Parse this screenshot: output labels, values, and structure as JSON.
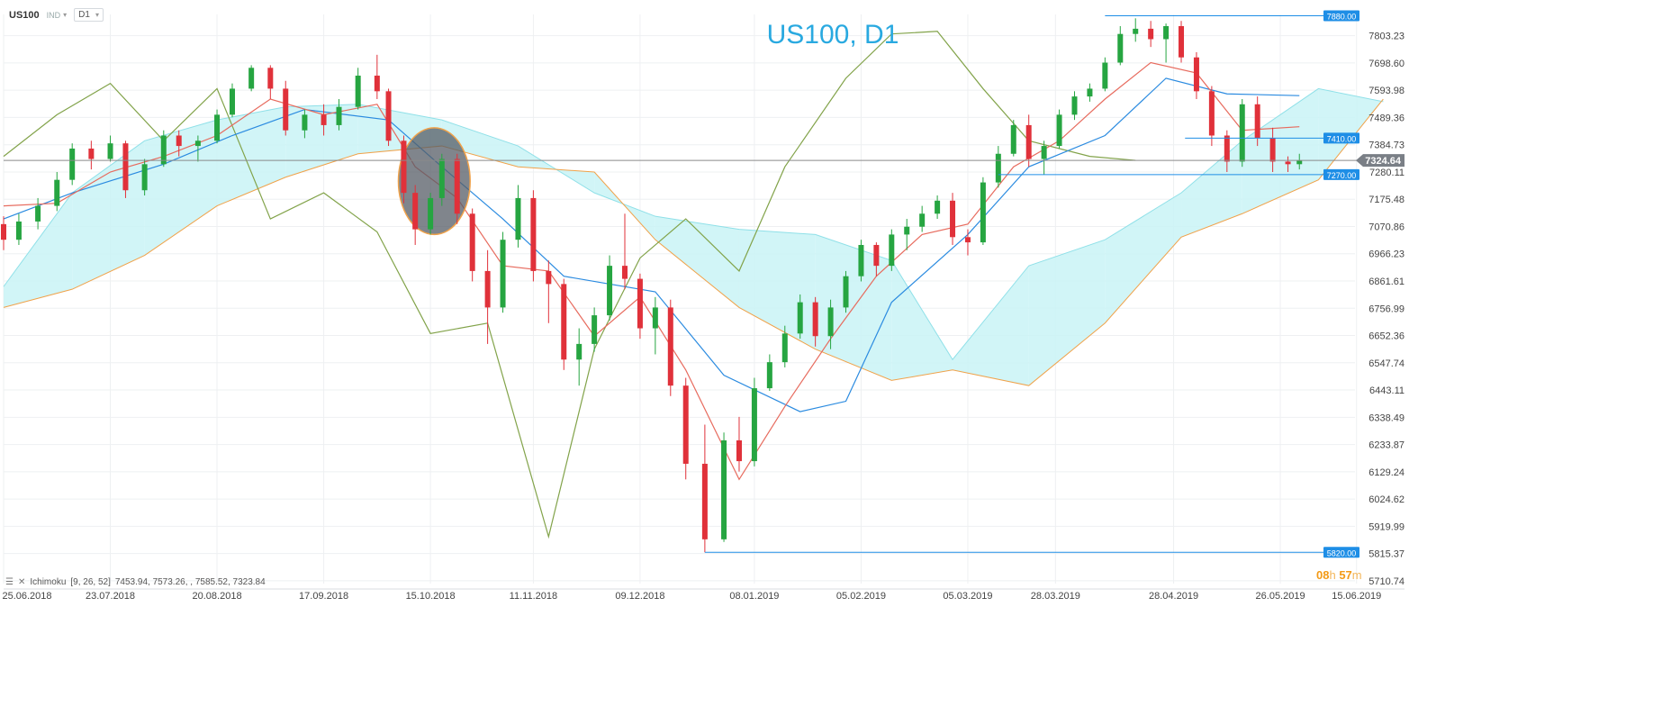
{
  "toolbar": {
    "symbol": "US100",
    "type_label": "IND",
    "timeframe": "D1"
  },
  "indicator_legend": {
    "name": "Ichimoku",
    "params": "[9, 26, 52]",
    "values": "7453.94,  7573.26,  , 7585.52,  7323.84"
  },
  "countdown": {
    "hours": "08",
    "h_unit": "h",
    "minutes": "57",
    "m_unit": "m"
  },
  "colors": {
    "title": "#29a9e0",
    "bull": "#26a541",
    "bear": "#e0313a",
    "tenkan": "#e76b5e",
    "kijun": "#2b8be0",
    "chikou": "#82a34a",
    "spanA": "#f0a24a",
    "kumo_bull": "#c9f3f6",
    "kumo_bear": "#fbd5b0",
    "hline": "#1e8ee6",
    "price_line": "#8a8a8a",
    "highlight_fill": "#555c66",
    "highlight_stroke": "#f0a24a"
  },
  "chart_data": {
    "type": "candlestick",
    "title": "US100, D1",
    "y_ticks": [
      7803.23,
      7698.6,
      7593.98,
      7489.36,
      7384.73,
      7280.11,
      7175.48,
      7070.86,
      6966.23,
      6861.61,
      6756.99,
      6652.36,
      6547.74,
      6443.11,
      6338.49,
      6233.87,
      6129.24,
      6024.62,
      5919.99,
      5815.37,
      5710.74
    ],
    "x_ticks": [
      "25.06.2018",
      "23.07.2018",
      "20.08.2018",
      "17.09.2018",
      "15.10.2018",
      "11.11.2018",
      "09.12.2018",
      "08.01.2019",
      "05.02.2019",
      "05.03.2019",
      "28.03.2019",
      "28.04.2019",
      "26.05.2019",
      "15.06.2019"
    ],
    "ylim": [
      5700,
      7885
    ],
    "current_price": 7324.64,
    "horizontal_levels": [
      {
        "value": 7880.0,
        "label": "7880.00",
        "from_date": "2019-04-10"
      },
      {
        "value": 7410.0,
        "label": "7410.00",
        "from_date": "2019-05-01"
      },
      {
        "value": 7270.0,
        "label": "7270.00",
        "from_date": "2019-03-13"
      },
      {
        "value": 5820.0,
        "label": "5820.00",
        "from_date": "2018-12-26"
      }
    ],
    "highlight": {
      "from_date": "2018-10-08",
      "to_date": "2018-10-24",
      "low": 7040,
      "high": 7450
    },
    "candles": [
      {
        "d": "2018-06-25",
        "o": 7080,
        "h": 7110,
        "l": 6980,
        "c": 7020
      },
      {
        "d": "2018-06-29",
        "o": 7020,
        "h": 7120,
        "l": 7000,
        "c": 7090
      },
      {
        "d": "2018-07-04",
        "o": 7090,
        "h": 7180,
        "l": 7060,
        "c": 7150
      },
      {
        "d": "2018-07-09",
        "o": 7150,
        "h": 7280,
        "l": 7130,
        "c": 7250
      },
      {
        "d": "2018-07-13",
        "o": 7250,
        "h": 7390,
        "l": 7230,
        "c": 7370
      },
      {
        "d": "2018-07-18",
        "o": 7370,
        "h": 7400,
        "l": 7290,
        "c": 7330
      },
      {
        "d": "2018-07-23",
        "o": 7330,
        "h": 7420,
        "l": 7320,
        "c": 7390
      },
      {
        "d": "2018-07-27",
        "o": 7390,
        "h": 7400,
        "l": 7180,
        "c": 7210
      },
      {
        "d": "2018-08-01",
        "o": 7210,
        "h": 7330,
        "l": 7190,
        "c": 7310
      },
      {
        "d": "2018-08-06",
        "o": 7310,
        "h": 7440,
        "l": 7300,
        "c": 7420
      },
      {
        "d": "2018-08-10",
        "o": 7420,
        "h": 7440,
        "l": 7340,
        "c": 7380
      },
      {
        "d": "2018-08-15",
        "o": 7380,
        "h": 7420,
        "l": 7320,
        "c": 7400
      },
      {
        "d": "2018-08-20",
        "o": 7400,
        "h": 7520,
        "l": 7390,
        "c": 7500
      },
      {
        "d": "2018-08-24",
        "o": 7500,
        "h": 7620,
        "l": 7490,
        "c": 7600
      },
      {
        "d": "2018-08-29",
        "o": 7600,
        "h": 7690,
        "l": 7590,
        "c": 7680
      },
      {
        "d": "2018-09-03",
        "o": 7680,
        "h": 7690,
        "l": 7560,
        "c": 7600
      },
      {
        "d": "2018-09-07",
        "o": 7600,
        "h": 7630,
        "l": 7420,
        "c": 7440
      },
      {
        "d": "2018-09-12",
        "o": 7440,
        "h": 7520,
        "l": 7410,
        "c": 7500
      },
      {
        "d": "2018-09-17",
        "o": 7500,
        "h": 7540,
        "l": 7420,
        "c": 7460
      },
      {
        "d": "2018-09-21",
        "o": 7460,
        "h": 7560,
        "l": 7440,
        "c": 7530
      },
      {
        "d": "2018-09-26",
        "o": 7530,
        "h": 7680,
        "l": 7520,
        "c": 7650
      },
      {
        "d": "2018-10-01",
        "o": 7650,
        "h": 7730,
        "l": 7560,
        "c": 7590
      },
      {
        "d": "2018-10-04",
        "o": 7590,
        "h": 7600,
        "l": 7380,
        "c": 7400
      },
      {
        "d": "2018-10-08",
        "o": 7400,
        "h": 7420,
        "l": 7160,
        "c": 7200
      },
      {
        "d": "2018-10-11",
        "o": 7200,
        "h": 7230,
        "l": 7000,
        "c": 7060
      },
      {
        "d": "2018-10-15",
        "o": 7060,
        "h": 7200,
        "l": 7040,
        "c": 7180
      },
      {
        "d": "2018-10-18",
        "o": 7180,
        "h": 7350,
        "l": 7150,
        "c": 7330
      },
      {
        "d": "2018-10-22",
        "o": 7330,
        "h": 7350,
        "l": 7080,
        "c": 7120
      },
      {
        "d": "2018-10-26",
        "o": 7120,
        "h": 7140,
        "l": 6860,
        "c": 6900
      },
      {
        "d": "2018-10-30",
        "o": 6900,
        "h": 6980,
        "l": 6620,
        "c": 6760
      },
      {
        "d": "2018-11-03",
        "o": 6760,
        "h": 7050,
        "l": 6740,
        "c": 7020
      },
      {
        "d": "2018-11-07",
        "o": 7020,
        "h": 7230,
        "l": 6990,
        "c": 7180
      },
      {
        "d": "2018-11-11",
        "o": 7180,
        "h": 7210,
        "l": 6860,
        "c": 6900
      },
      {
        "d": "2018-11-15",
        "o": 6900,
        "h": 6940,
        "l": 6700,
        "c": 6850
      },
      {
        "d": "2018-11-19",
        "o": 6850,
        "h": 6870,
        "l": 6520,
        "c": 6560
      },
      {
        "d": "2018-11-23",
        "o": 6560,
        "h": 6680,
        "l": 6460,
        "c": 6620
      },
      {
        "d": "2018-11-27",
        "o": 6620,
        "h": 6760,
        "l": 6590,
        "c": 6730
      },
      {
        "d": "2018-12-01",
        "o": 6730,
        "h": 6960,
        "l": 6710,
        "c": 6920
      },
      {
        "d": "2018-12-05",
        "o": 6920,
        "h": 7120,
        "l": 6830,
        "c": 6870
      },
      {
        "d": "2018-12-09",
        "o": 6870,
        "h": 6890,
        "l": 6640,
        "c": 6680
      },
      {
        "d": "2018-12-13",
        "o": 6680,
        "h": 6800,
        "l": 6580,
        "c": 6760
      },
      {
        "d": "2018-12-17",
        "o": 6760,
        "h": 6790,
        "l": 6420,
        "c": 6460
      },
      {
        "d": "2018-12-21",
        "o": 6460,
        "h": 6490,
        "l": 6100,
        "c": 6160
      },
      {
        "d": "2018-12-26",
        "o": 6160,
        "h": 6310,
        "l": 5820,
        "c": 5870
      },
      {
        "d": "2018-12-31",
        "o": 5870,
        "h": 6280,
        "l": 5860,
        "c": 6250
      },
      {
        "d": "2019-01-04",
        "o": 6250,
        "h": 6340,
        "l": 6130,
        "c": 6170
      },
      {
        "d": "2019-01-08",
        "o": 6170,
        "h": 6490,
        "l": 6150,
        "c": 6450
      },
      {
        "d": "2019-01-12",
        "o": 6450,
        "h": 6580,
        "l": 6440,
        "c": 6550
      },
      {
        "d": "2019-01-16",
        "o": 6550,
        "h": 6690,
        "l": 6530,
        "c": 6660
      },
      {
        "d": "2019-01-20",
        "o": 6660,
        "h": 6810,
        "l": 6640,
        "c": 6780
      },
      {
        "d": "2019-01-24",
        "o": 6780,
        "h": 6800,
        "l": 6610,
        "c": 6650
      },
      {
        "d": "2019-01-28",
        "o": 6650,
        "h": 6790,
        "l": 6600,
        "c": 6760
      },
      {
        "d": "2019-02-01",
        "o": 6760,
        "h": 6900,
        "l": 6740,
        "c": 6880
      },
      {
        "d": "2019-02-05",
        "o": 6880,
        "h": 7020,
        "l": 6860,
        "c": 7000
      },
      {
        "d": "2019-02-09",
        "o": 7000,
        "h": 7010,
        "l": 6880,
        "c": 6920
      },
      {
        "d": "2019-02-13",
        "o": 6920,
        "h": 7060,
        "l": 6900,
        "c": 7040
      },
      {
        "d": "2019-02-17",
        "o": 7040,
        "h": 7100,
        "l": 6980,
        "c": 7070
      },
      {
        "d": "2019-02-21",
        "o": 7070,
        "h": 7150,
        "l": 7050,
        "c": 7120
      },
      {
        "d": "2019-02-25",
        "o": 7120,
        "h": 7190,
        "l": 7100,
        "c": 7170
      },
      {
        "d": "2019-03-01",
        "o": 7170,
        "h": 7200,
        "l": 7000,
        "c": 7030
      },
      {
        "d": "2019-03-05",
        "o": 7030,
        "h": 7060,
        "l": 6960,
        "c": 7010
      },
      {
        "d": "2019-03-09",
        "o": 7010,
        "h": 7260,
        "l": 7000,
        "c": 7240
      },
      {
        "d": "2019-03-13",
        "o": 7240,
        "h": 7380,
        "l": 7220,
        "c": 7350
      },
      {
        "d": "2019-03-17",
        "o": 7350,
        "h": 7480,
        "l": 7340,
        "c": 7460
      },
      {
        "d": "2019-03-21",
        "o": 7460,
        "h": 7500,
        "l": 7300,
        "c": 7330
      },
      {
        "d": "2019-03-25",
        "o": 7330,
        "h": 7400,
        "l": 7270,
        "c": 7380
      },
      {
        "d": "2019-03-29",
        "o": 7380,
        "h": 7520,
        "l": 7370,
        "c": 7500
      },
      {
        "d": "2019-04-02",
        "o": 7500,
        "h": 7590,
        "l": 7480,
        "c": 7570
      },
      {
        "d": "2019-04-06",
        "o": 7570,
        "h": 7620,
        "l": 7550,
        "c": 7600
      },
      {
        "d": "2019-04-10",
        "o": 7600,
        "h": 7720,
        "l": 7590,
        "c": 7700
      },
      {
        "d": "2019-04-14",
        "o": 7700,
        "h": 7840,
        "l": 7690,
        "c": 7810
      },
      {
        "d": "2019-04-18",
        "o": 7810,
        "h": 7870,
        "l": 7780,
        "c": 7830
      },
      {
        "d": "2019-04-22",
        "o": 7830,
        "h": 7860,
        "l": 7760,
        "c": 7790
      },
      {
        "d": "2019-04-26",
        "o": 7790,
        "h": 7850,
        "l": 7700,
        "c": 7840
      },
      {
        "d": "2019-04-30",
        "o": 7840,
        "h": 7860,
        "l": 7700,
        "c": 7720
      },
      {
        "d": "2019-05-04",
        "o": 7720,
        "h": 7740,
        "l": 7560,
        "c": 7590
      },
      {
        "d": "2019-05-08",
        "o": 7590,
        "h": 7610,
        "l": 7380,
        "c": 7420
      },
      {
        "d": "2019-05-12",
        "o": 7420,
        "h": 7440,
        "l": 7280,
        "c": 7320
      },
      {
        "d": "2019-05-16",
        "o": 7320,
        "h": 7560,
        "l": 7300,
        "c": 7540
      },
      {
        "d": "2019-05-20",
        "o": 7540,
        "h": 7570,
        "l": 7380,
        "c": 7410
      },
      {
        "d": "2019-05-24",
        "o": 7410,
        "h": 7450,
        "l": 7280,
        "c": 7320
      },
      {
        "d": "2019-05-28",
        "o": 7320,
        "h": 7340,
        "l": 7280,
        "c": 7310
      },
      {
        "d": "2019-05-31",
        "o": 7310,
        "h": 7350,
        "l": 7290,
        "c": 7324.64
      }
    ],
    "tenkan": [
      [
        "2018-06-25",
        7150
      ],
      [
        "2018-07-09",
        7160
      ],
      [
        "2018-07-23",
        7280
      ],
      [
        "2018-08-06",
        7340
      ],
      [
        "2018-08-20",
        7420
      ],
      [
        "2018-09-03",
        7560
      ],
      [
        "2018-09-17",
        7500
      ],
      [
        "2018-10-01",
        7540
      ],
      [
        "2018-10-11",
        7300
      ],
      [
        "2018-10-22",
        7180
      ],
      [
        "2018-11-03",
        6920
      ],
      [
        "2018-11-15",
        6900
      ],
      [
        "2018-11-27",
        6650
      ],
      [
        "2018-12-09",
        6800
      ],
      [
        "2018-12-21",
        6520
      ],
      [
        "2019-01-04",
        6100
      ],
      [
        "2019-01-16",
        6380
      ],
      [
        "2019-01-28",
        6640
      ],
      [
        "2019-02-09",
        6880
      ],
      [
        "2019-02-21",
        7040
      ],
      [
        "2019-03-05",
        7080
      ],
      [
        "2019-03-17",
        7300
      ],
      [
        "2019-03-29",
        7400
      ],
      [
        "2019-04-10",
        7560
      ],
      [
        "2019-04-22",
        7700
      ],
      [
        "2019-05-04",
        7660
      ],
      [
        "2019-05-16",
        7440
      ],
      [
        "2019-05-31",
        7453.94
      ]
    ],
    "kijun": [
      [
        "2018-06-25",
        7100
      ],
      [
        "2018-07-13",
        7200
      ],
      [
        "2018-08-06",
        7310
      ],
      [
        "2018-08-24",
        7420
      ],
      [
        "2018-09-12",
        7520
      ],
      [
        "2018-10-04",
        7480
      ],
      [
        "2018-10-18",
        7300
      ],
      [
        "2018-11-03",
        7100
      ],
      [
        "2018-11-19",
        6880
      ],
      [
        "2018-12-13",
        6820
      ],
      [
        "2018-12-31",
        6500
      ],
      [
        "2019-01-20",
        6360
      ],
      [
        "2019-02-01",
        6400
      ],
      [
        "2019-02-13",
        6780
      ],
      [
        "2019-03-05",
        7040
      ],
      [
        "2019-03-21",
        7300
      ],
      [
        "2019-04-10",
        7420
      ],
      [
        "2019-04-26",
        7640
      ],
      [
        "2019-05-12",
        7580
      ],
      [
        "2019-05-31",
        7573.26
      ]
    ],
    "chikou": [
      [
        "2018-06-25",
        7340
      ],
      [
        "2018-07-09",
        7500
      ],
      [
        "2018-07-23",
        7620
      ],
      [
        "2018-08-06",
        7400
      ],
      [
        "2018-08-20",
        7600
      ],
      [
        "2018-09-03",
        7100
      ],
      [
        "2018-09-17",
        7200
      ],
      [
        "2018-10-01",
        7050
      ],
      [
        "2018-10-15",
        6660
      ],
      [
        "2018-10-30",
        6700
      ],
      [
        "2018-11-15",
        5880
      ],
      [
        "2018-11-27",
        6600
      ],
      [
        "2018-12-09",
        6950
      ],
      [
        "2018-12-21",
        7100
      ],
      [
        "2019-01-04",
        6900
      ],
      [
        "2019-01-16",
        7300
      ],
      [
        "2019-02-01",
        7640
      ],
      [
        "2019-02-13",
        7810
      ],
      [
        "2019-02-25",
        7820
      ],
      [
        "2019-03-09",
        7600
      ],
      [
        "2019-03-21",
        7400
      ],
      [
        "2019-04-06",
        7340
      ],
      [
        "2019-04-18",
        7324.64
      ]
    ],
    "kumo": [
      [
        "2018-06-25",
        6840,
        6760
      ],
      [
        "2018-07-13",
        7200,
        6830
      ],
      [
        "2018-08-01",
        7400,
        6960
      ],
      [
        "2018-08-20",
        7480,
        7150
      ],
      [
        "2018-09-07",
        7530,
        7260
      ],
      [
        "2018-09-26",
        7540,
        7350
      ],
      [
        "2018-10-18",
        7480,
        7380
      ],
      [
        "2018-11-07",
        7380,
        7300
      ],
      [
        "2018-11-27",
        7200,
        7280
      ],
      [
        "2018-12-13",
        7110,
        7020
      ],
      [
        "2019-01-04",
        7060,
        6760
      ],
      [
        "2019-01-24",
        7040,
        6600
      ],
      [
        "2019-02-13",
        6940,
        6480
      ],
      [
        "2019-03-01",
        6560,
        6520
      ],
      [
        "2019-03-21",
        6920,
        6460
      ],
      [
        "2019-04-10",
        7020,
        6700
      ],
      [
        "2019-04-30",
        7200,
        7030
      ],
      [
        "2019-05-16",
        7400,
        7120
      ],
      [
        "2019-06-05",
        7600,
        7250
      ],
      [
        "2019-06-22",
        7550,
        7560
      ]
    ]
  }
}
